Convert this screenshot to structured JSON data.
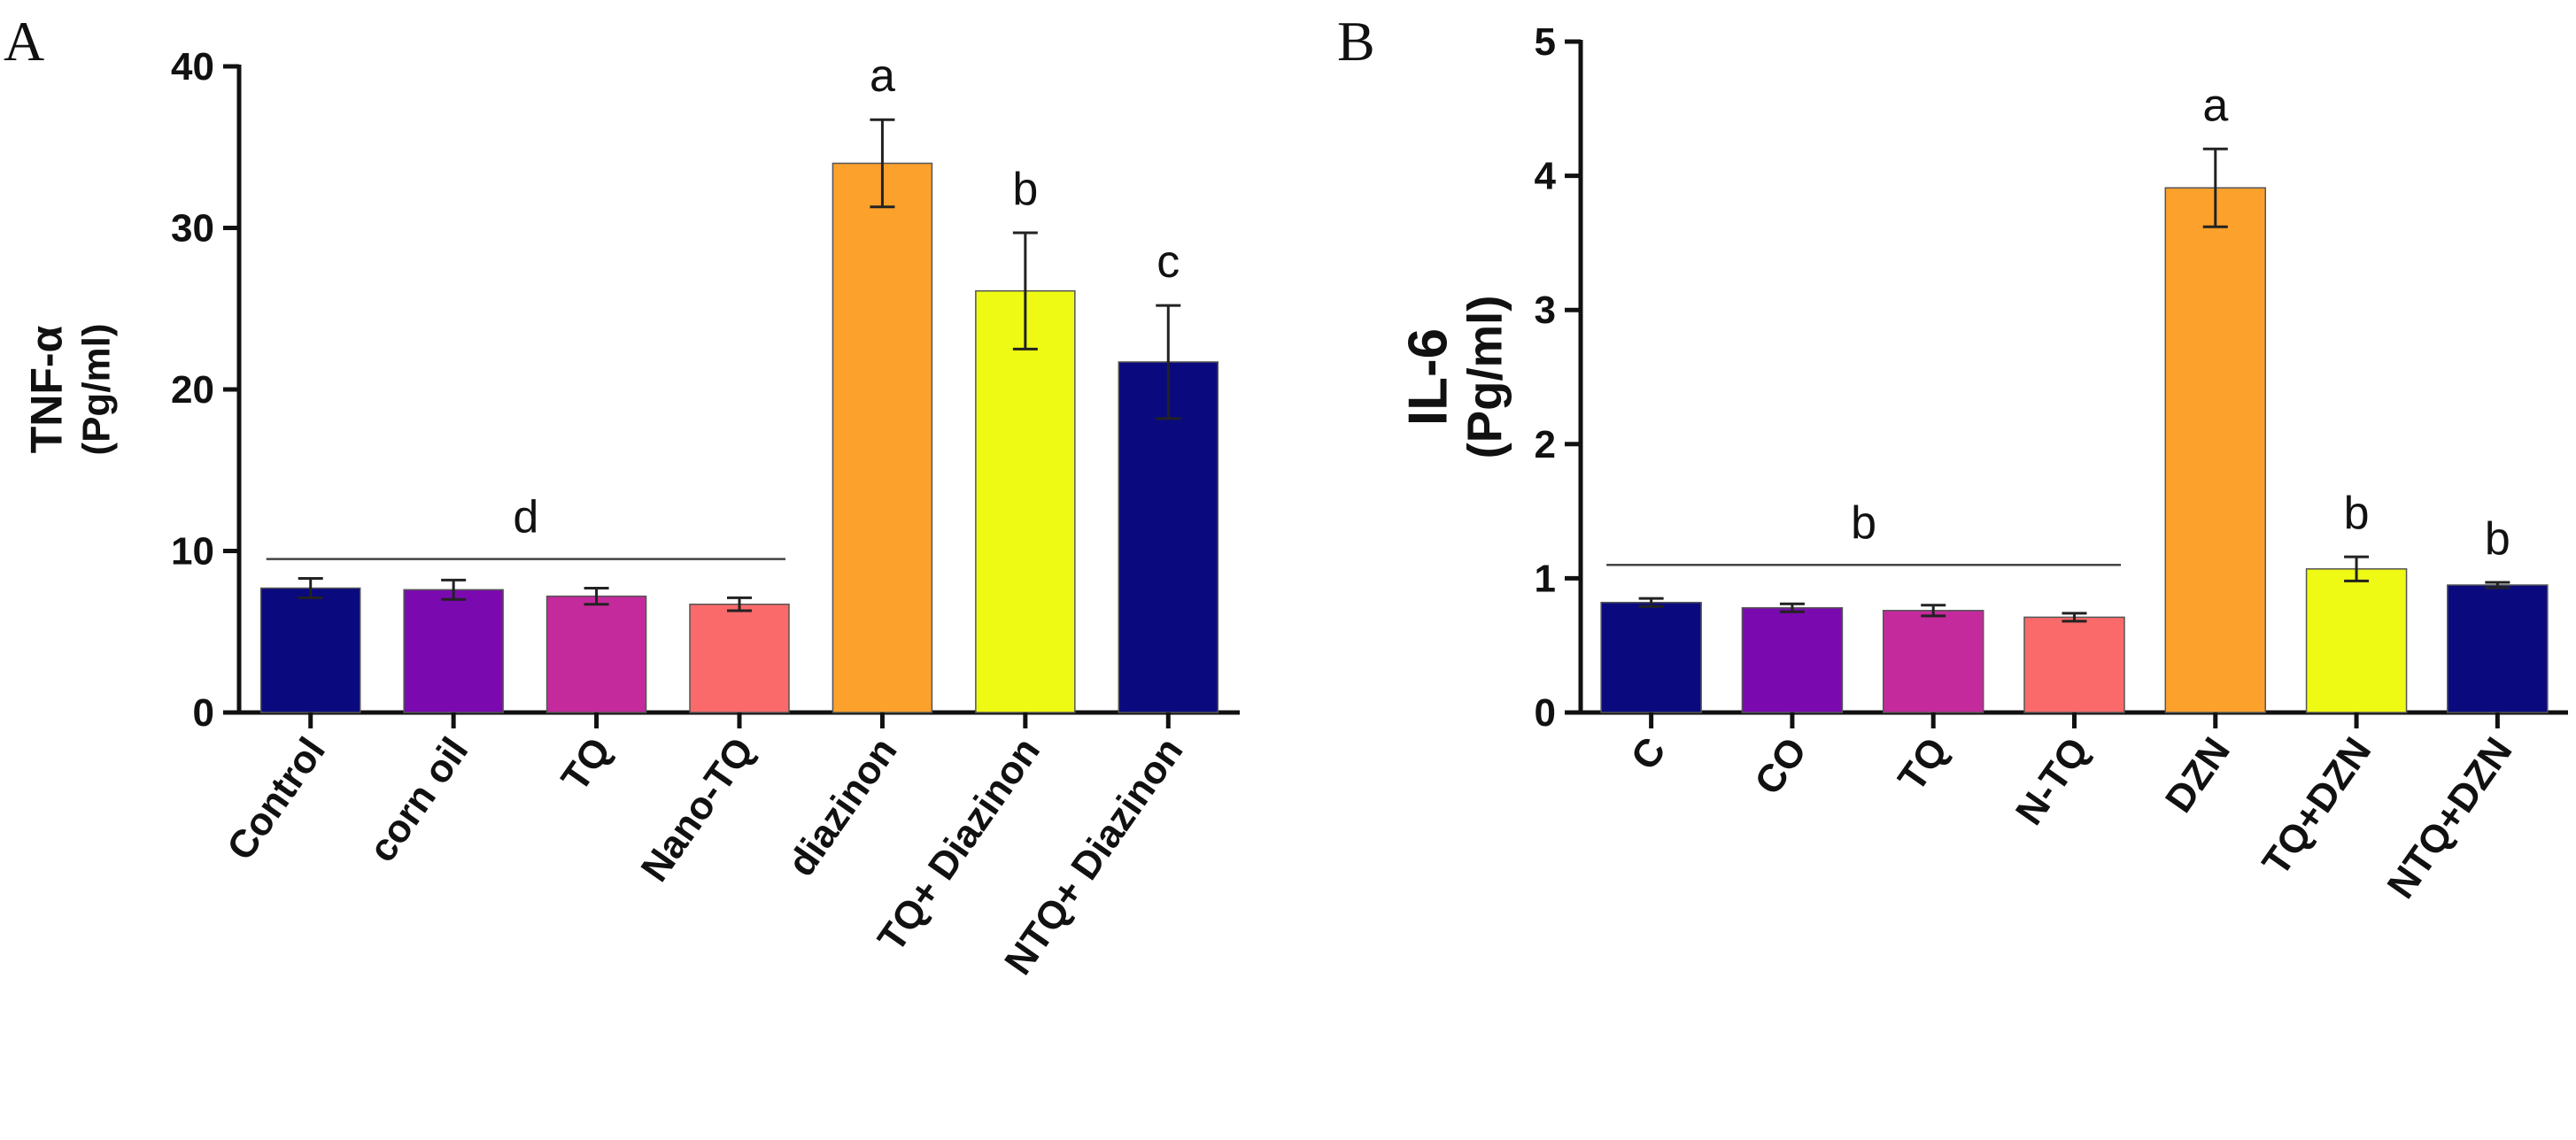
{
  "chart_data": [
    {
      "type": "bar",
      "panel": "A",
      "title": "",
      "ylabel_line1": "TNF-α",
      "ylabel_line2": "(Pg/ml)",
      "xlabel": "",
      "ylim": [
        0,
        40
      ],
      "yticks": [
        0,
        10,
        20,
        30,
        40
      ],
      "categories": [
        "Control",
        "corn oil",
        "TQ",
        "Nano-TQ",
        "diazinon",
        "TQ+ Diazinon",
        "NTQ+ Diazinon"
      ],
      "values": [
        7.7,
        7.6,
        7.2,
        6.7,
        34.0,
        26.1,
        21.7
      ],
      "errors": [
        0.6,
        0.6,
        0.5,
        0.4,
        2.7,
        3.6,
        3.5
      ],
      "colors": [
        "#0a0a7e",
        "#7a0ab0",
        "#c42a9c",
        "#fa6a6a",
        "#fba12c",
        "#eefa14",
        "#0a0a7e"
      ],
      "annotations": [
        {
          "text": "a",
          "category": "diazinon"
        },
        {
          "text": "b",
          "category": "TQ+ Diazinon"
        },
        {
          "text": "c",
          "category": "NTQ+ Diazinon"
        },
        {
          "text": "d",
          "category_from": "Control",
          "category_to": "Nano-TQ",
          "y": 9.5
        }
      ]
    },
    {
      "type": "bar",
      "panel": "B",
      "title": "",
      "ylabel_line1": "IL-6",
      "ylabel_line2": "(Pg/ml)",
      "xlabel": "",
      "ylim": [
        0,
        5
      ],
      "yticks": [
        0,
        1,
        2,
        3,
        4,
        5
      ],
      "categories": [
        "C",
        "CO",
        "TQ",
        "N-TQ",
        "DZN",
        "TQ+DZN",
        "NTQ+DZN"
      ],
      "values": [
        0.82,
        0.78,
        0.76,
        0.71,
        3.91,
        1.07,
        0.95
      ],
      "errors": [
        0.03,
        0.03,
        0.04,
        0.03,
        0.29,
        0.09,
        0.02
      ],
      "colors": [
        "#0a0a7e",
        "#7a0ab0",
        "#c42a9c",
        "#fa6a6a",
        "#fba12c",
        "#eefa14",
        "#0a0a7e"
      ],
      "annotations": [
        {
          "text": "a",
          "category": "DZN"
        },
        {
          "text": "b",
          "category": "TQ+DZN"
        },
        {
          "text": "b",
          "category": "NTQ+DZN"
        },
        {
          "text": "b",
          "category_from": "C",
          "category_to": "N-TQ",
          "y": 1.1
        }
      ]
    }
  ]
}
